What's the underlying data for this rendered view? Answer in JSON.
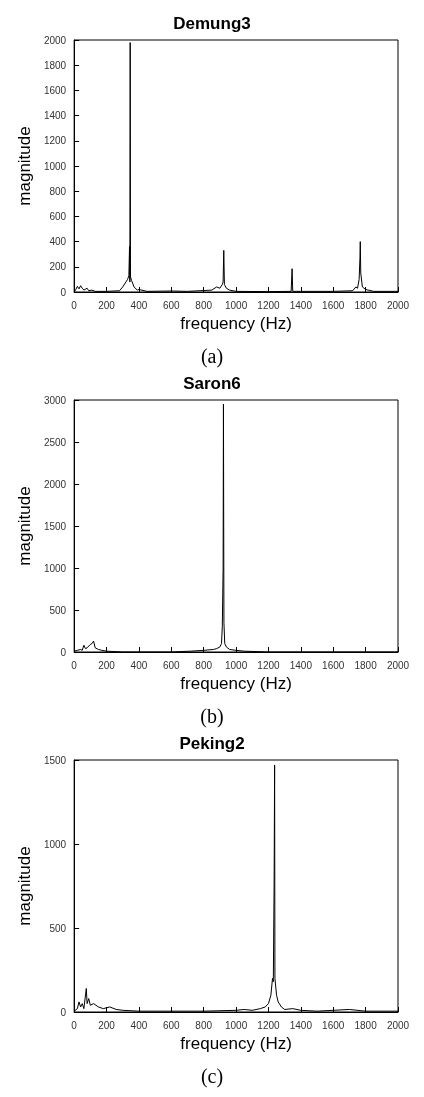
{
  "chart_data": [
    {
      "type": "line",
      "title": "Demung3",
      "xlabel": "frequency (Hz)",
      "ylabel": "magnitude",
      "annotations": [
        "(a)"
      ],
      "xlim": [
        0,
        2000
      ],
      "ylim": [
        0,
        2000
      ],
      "xticks": [
        0,
        200,
        400,
        600,
        800,
        1000,
        1200,
        1400,
        1600,
        1800,
        2000
      ],
      "yticks": [
        0,
        200,
        400,
        600,
        800,
        1000,
        1200,
        1400,
        1600,
        1800,
        2000
      ],
      "grid": false,
      "marker": "none",
      "line_style": "solid",
      "series": [
        {
          "color": "#000000",
          "x": [
            0,
            10,
            20,
            30,
            40,
            50,
            60,
            80,
            90,
            110,
            130,
            200,
            280,
            300,
            320,
            330,
            338,
            342,
            344,
            346,
            348,
            355,
            370,
            390,
            400,
            450,
            600,
            700,
            850,
            880,
            900,
            915,
            920,
            924,
            928,
            940,
            960,
            1000,
            1200,
            1340,
            1346,
            1350,
            1400,
            1600,
            1720,
            1740,
            1750,
            1760,
            1765,
            1767,
            1770,
            1780,
            1800,
            1850,
            2000
          ],
          "values": [
            0,
            20,
            45,
            25,
            50,
            30,
            15,
            30,
            10,
            15,
            5,
            5,
            10,
            40,
            80,
            100,
            130,
            360,
            80,
            1980,
            120,
            90,
            40,
            15,
            20,
            5,
            8,
            5,
            15,
            40,
            30,
            60,
            80,
            330,
            60,
            30,
            15,
            5,
            3,
            5,
            185,
            5,
            5,
            5,
            10,
            40,
            30,
            100,
            270,
            400,
            150,
            40,
            20,
            5,
            5
          ]
        }
      ]
    },
    {
      "type": "line",
      "title": "Saron6",
      "xlabel": "frequency (Hz)",
      "ylabel": "magnitude",
      "annotations": [
        "(b)"
      ],
      "xlim": [
        0,
        2000
      ],
      "ylim": [
        0,
        3000
      ],
      "xticks": [
        0,
        200,
        400,
        600,
        800,
        1000,
        1200,
        1400,
        1600,
        1800,
        2000
      ],
      "yticks": [
        0,
        500,
        1000,
        1500,
        2000,
        2500,
        3000
      ],
      "grid": false,
      "marker": "none",
      "line_style": "solid",
      "series": [
        {
          "color": "#000000",
          "x": [
            0,
            20,
            40,
            50,
            60,
            70,
            80,
            100,
            110,
            120,
            130,
            150,
            170,
            200,
            300,
            600,
            720,
            800,
            860,
            880,
            900,
            910,
            915,
            920,
            922,
            925,
            930,
            940,
            960,
            1000,
            1050,
            1200,
            1500,
            2000
          ],
          "values": [
            10,
            20,
            30,
            20,
            80,
            40,
            50,
            90,
            100,
            130,
            50,
            30,
            20,
            10,
            0,
            0,
            10,
            20,
            30,
            40,
            60,
            100,
            300,
            1000,
            2950,
            350,
            100,
            60,
            30,
            20,
            10,
            0,
            0,
            0
          ]
        }
      ]
    },
    {
      "type": "line",
      "title": "Peking2",
      "xlabel": "frequency (Hz)",
      "ylabel": "magnitude",
      "annotations": [
        "(c)"
      ],
      "xlim": [
        0,
        2000
      ],
      "ylim": [
        0,
        1500
      ],
      "xticks": [
        0,
        200,
        400,
        600,
        800,
        1000,
        1200,
        1400,
        1600,
        1800,
        2000
      ],
      "yticks": [
        0,
        500,
        1000,
        1500
      ],
      "grid": false,
      "marker": "none",
      "line_style": "solid",
      "series": [
        {
          "color": "#000000",
          "x": [
            0,
            20,
            30,
            40,
            50,
            60,
            75,
            80,
            90,
            100,
            120,
            150,
            180,
            220,
            260,
            300,
            400,
            600,
            800,
            1000,
            1050,
            1100,
            1150,
            1180,
            1200,
            1215,
            1225,
            1230,
            1235,
            1238,
            1240,
            1250,
            1260,
            1280,
            1300,
            1350,
            1400,
            1500,
            1700,
            1800,
            2000
          ],
          "values": [
            5,
            20,
            60,
            30,
            50,
            20,
            140,
            50,
            80,
            40,
            50,
            30,
            20,
            30,
            15,
            10,
            5,
            5,
            5,
            10,
            15,
            10,
            20,
            30,
            50,
            100,
            200,
            180,
            780,
            1470,
            200,
            100,
            60,
            30,
            15,
            20,
            10,
            5,
            15,
            5,
            5
          ]
        }
      ]
    }
  ]
}
